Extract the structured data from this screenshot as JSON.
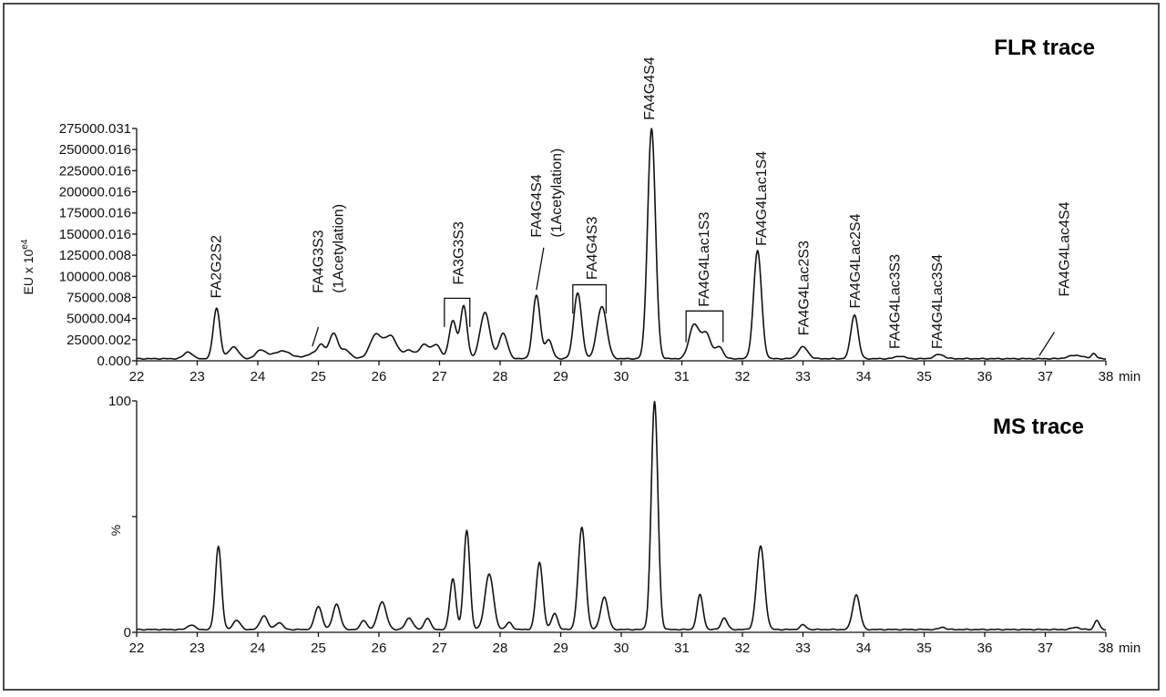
{
  "chart_data": [
    {
      "type": "line",
      "title": "FLR trace",
      "ylabel_main": "EU x 10",
      "ylabel_sup": "e4",
      "xunit": "min",
      "xlim": [
        22,
        38
      ],
      "ylim": [
        0,
        275000.031
      ],
      "x_ticks": [
        "22",
        "23",
        "24",
        "25",
        "26",
        "27",
        "28",
        "29",
        "30",
        "31",
        "32",
        "33",
        "34",
        "35",
        "36",
        "37",
        "38"
      ],
      "y_ticks": [
        {
          "value": 0,
          "label": "0.000"
        },
        {
          "value": 25000.002,
          "label": "25000.002"
        },
        {
          "value": 50000.004,
          "label": "50000.004"
        },
        {
          "value": 75000.008,
          "label": "75000.008"
        },
        {
          "value": 100000.008,
          "label": "100000.008"
        },
        {
          "value": 125000.008,
          "label": "125000.008"
        },
        {
          "value": 150000.016,
          "label": "150000.016"
        },
        {
          "value": 175000.016,
          "label": "175000.016"
        },
        {
          "value": 200000.016,
          "label": "200000.016"
        },
        {
          "value": 225000.016,
          "label": "225000.016"
        },
        {
          "value": 250000.016,
          "label": "250000.016"
        },
        {
          "value": 275000.031,
          "label": "275000.031"
        }
      ],
      "baseline": 2500,
      "peaks": [
        {
          "x": 22.85,
          "y": 8000,
          "w": 0.07
        },
        {
          "x": 23.32,
          "y": 60000,
          "w": 0.055
        },
        {
          "x": 23.6,
          "y": 14000,
          "w": 0.08
        },
        {
          "x": 24.05,
          "y": 10000,
          "w": 0.08
        },
        {
          "x": 24.4,
          "y": 9000,
          "w": 0.15
        },
        {
          "x": 24.9,
          "y": 6000,
          "w": 0.1
        },
        {
          "x": 25.05,
          "y": 15000,
          "w": 0.06
        },
        {
          "x": 25.25,
          "y": 30000,
          "w": 0.07
        },
        {
          "x": 25.45,
          "y": 10000,
          "w": 0.08
        },
        {
          "x": 25.95,
          "y": 28000,
          "w": 0.1
        },
        {
          "x": 26.2,
          "y": 26000,
          "w": 0.1
        },
        {
          "x": 26.5,
          "y": 10000,
          "w": 0.08
        },
        {
          "x": 26.75,
          "y": 17000,
          "w": 0.08
        },
        {
          "x": 26.95,
          "y": 16000,
          "w": 0.07
        },
        {
          "x": 27.22,
          "y": 45000,
          "w": 0.06
        },
        {
          "x": 27.4,
          "y": 62000,
          "w": 0.055
        },
        {
          "x": 27.75,
          "y": 55000,
          "w": 0.08
        },
        {
          "x": 28.05,
          "y": 30000,
          "w": 0.07
        },
        {
          "x": 28.6,
          "y": 75000,
          "w": 0.06
        },
        {
          "x": 28.8,
          "y": 22000,
          "w": 0.06
        },
        {
          "x": 29.28,
          "y": 78000,
          "w": 0.065
        },
        {
          "x": 29.68,
          "y": 62000,
          "w": 0.08
        },
        {
          "x": 30.5,
          "y": 272000,
          "w": 0.065
        },
        {
          "x": 31.2,
          "y": 40000,
          "w": 0.08
        },
        {
          "x": 31.4,
          "y": 30000,
          "w": 0.08
        },
        {
          "x": 31.62,
          "y": 14000,
          "w": 0.06
        },
        {
          "x": 32.25,
          "y": 128000,
          "w": 0.065
        },
        {
          "x": 33.0,
          "y": 14000,
          "w": 0.08
        },
        {
          "x": 33.85,
          "y": 52000,
          "w": 0.06
        },
        {
          "x": 34.6,
          "y": 3000,
          "w": 0.08
        },
        {
          "x": 35.25,
          "y": 5000,
          "w": 0.08
        },
        {
          "x": 37.5,
          "y": 4000,
          "w": 0.12
        },
        {
          "x": 37.8,
          "y": 6000,
          "w": 0.04
        }
      ],
      "labels": [
        {
          "lines": [
            "FA2G2S2"
          ],
          "x": 23.3,
          "y": 74000,
          "lead": null
        },
        {
          "lines": [
            "FA4G3S3",
            "(1Acetylation)"
          ],
          "x": 25.15,
          "y": 80000,
          "lead": [
            [
              25.0,
              40000
            ],
            [
              24.9,
              17000
            ]
          ]
        },
        {
          "lines": [
            "FA3G3S3"
          ],
          "x": 27.3,
          "y": 90000,
          "lead": null
        },
        {
          "lines": [
            "FA4G4S4",
            "(1Acetylation)"
          ],
          "x": 28.75,
          "y": 146000,
          "lead": [
            [
              28.72,
              134000
            ],
            [
              28.6,
              84000
            ]
          ]
        },
        {
          "lines": [
            "FA4G4S3"
          ],
          "x": 29.5,
          "y": 96000,
          "lead": null
        },
        {
          "lines": [
            "FA4G4S4"
          ],
          "x": 30.45,
          "y": 285000,
          "lead": null
        },
        {
          "lines": [
            "FA4G4Lac1S3"
          ],
          "x": 31.35,
          "y": 64000,
          "lead": null
        },
        {
          "lines": [
            "FA4G4Lac1S4"
          ],
          "x": 32.3,
          "y": 136000,
          "lead": null
        },
        {
          "lines": [
            "FA4G4Lac2S3"
          ],
          "x": 33.0,
          "y": 30000,
          "lead": null
        },
        {
          "lines": [
            "FA4G4Lac2S4"
          ],
          "x": 33.85,
          "y": 62000,
          "lead": null
        },
        {
          "lines": [
            "FA4G4Lac3S3"
          ],
          "x": 34.5,
          "y": 14000,
          "lead": null
        },
        {
          "lines": [
            "FA4G4Lac3S4"
          ],
          "x": 35.2,
          "y": 14000,
          "lead": null
        },
        {
          "lines": [
            "FA4G4Lac4S4"
          ],
          "x": 37.3,
          "y": 76000,
          "lead": [
            [
              37.15,
              34000
            ],
            [
              36.9,
              6000
            ]
          ]
        }
      ],
      "brackets": [
        {
          "x1": 27.08,
          "x2": 27.5,
          "y_top": 74000,
          "y_bottom": 40000
        },
        {
          "x1": 29.2,
          "x2": 29.75,
          "y_top": 90000,
          "y_bottom": 56000
        },
        {
          "x1": 31.07,
          "x2": 31.68,
          "y_top": 59000,
          "y_bottom": 22000
        }
      ]
    },
    {
      "type": "line",
      "title": "MS trace",
      "ylabel": "%",
      "xunit": "min",
      "xlim": [
        22,
        38
      ],
      "ylim": [
        0,
        100
      ],
      "x_ticks": [
        "22",
        "23",
        "24",
        "25",
        "26",
        "27",
        "28",
        "29",
        "30",
        "31",
        "32",
        "33",
        "34",
        "35",
        "36",
        "37",
        "38"
      ],
      "y_ticks": [
        {
          "value": 0,
          "label": "0"
        },
        {
          "value": 50,
          "label": ""
        },
        {
          "value": 100,
          "label": "100"
        }
      ],
      "baseline": 1.2,
      "peaks": [
        {
          "x": 22.9,
          "y": 2,
          "w": 0.06
        },
        {
          "x": 23.35,
          "y": 36,
          "w": 0.05
        },
        {
          "x": 23.65,
          "y": 4,
          "w": 0.06
        },
        {
          "x": 24.1,
          "y": 6,
          "w": 0.06
        },
        {
          "x": 24.35,
          "y": 3,
          "w": 0.06
        },
        {
          "x": 25.0,
          "y": 10,
          "w": 0.06
        },
        {
          "x": 25.3,
          "y": 11,
          "w": 0.06
        },
        {
          "x": 25.75,
          "y": 4,
          "w": 0.05
        },
        {
          "x": 26.05,
          "y": 12,
          "w": 0.07
        },
        {
          "x": 26.5,
          "y": 5,
          "w": 0.06
        },
        {
          "x": 26.8,
          "y": 5,
          "w": 0.05
        },
        {
          "x": 27.22,
          "y": 22,
          "w": 0.05
        },
        {
          "x": 27.45,
          "y": 43,
          "w": 0.05
        },
        {
          "x": 27.82,
          "y": 24,
          "w": 0.07
        },
        {
          "x": 28.15,
          "y": 3,
          "w": 0.05
        },
        {
          "x": 28.65,
          "y": 29,
          "w": 0.055
        },
        {
          "x": 28.9,
          "y": 7,
          "w": 0.05
        },
        {
          "x": 29.35,
          "y": 44,
          "w": 0.06
        },
        {
          "x": 29.72,
          "y": 14,
          "w": 0.06
        },
        {
          "x": 30.55,
          "y": 98.5,
          "w": 0.055
        },
        {
          "x": 31.3,
          "y": 15,
          "w": 0.05
        },
        {
          "x": 31.7,
          "y": 5,
          "w": 0.05
        },
        {
          "x": 32.3,
          "y": 36,
          "w": 0.065
        },
        {
          "x": 33.0,
          "y": 2,
          "w": 0.05
        },
        {
          "x": 33.88,
          "y": 15,
          "w": 0.06
        },
        {
          "x": 35.3,
          "y": 1,
          "w": 0.05
        },
        {
          "x": 37.5,
          "y": 1,
          "w": 0.06
        },
        {
          "x": 37.85,
          "y": 4,
          "w": 0.04
        }
      ]
    }
  ]
}
